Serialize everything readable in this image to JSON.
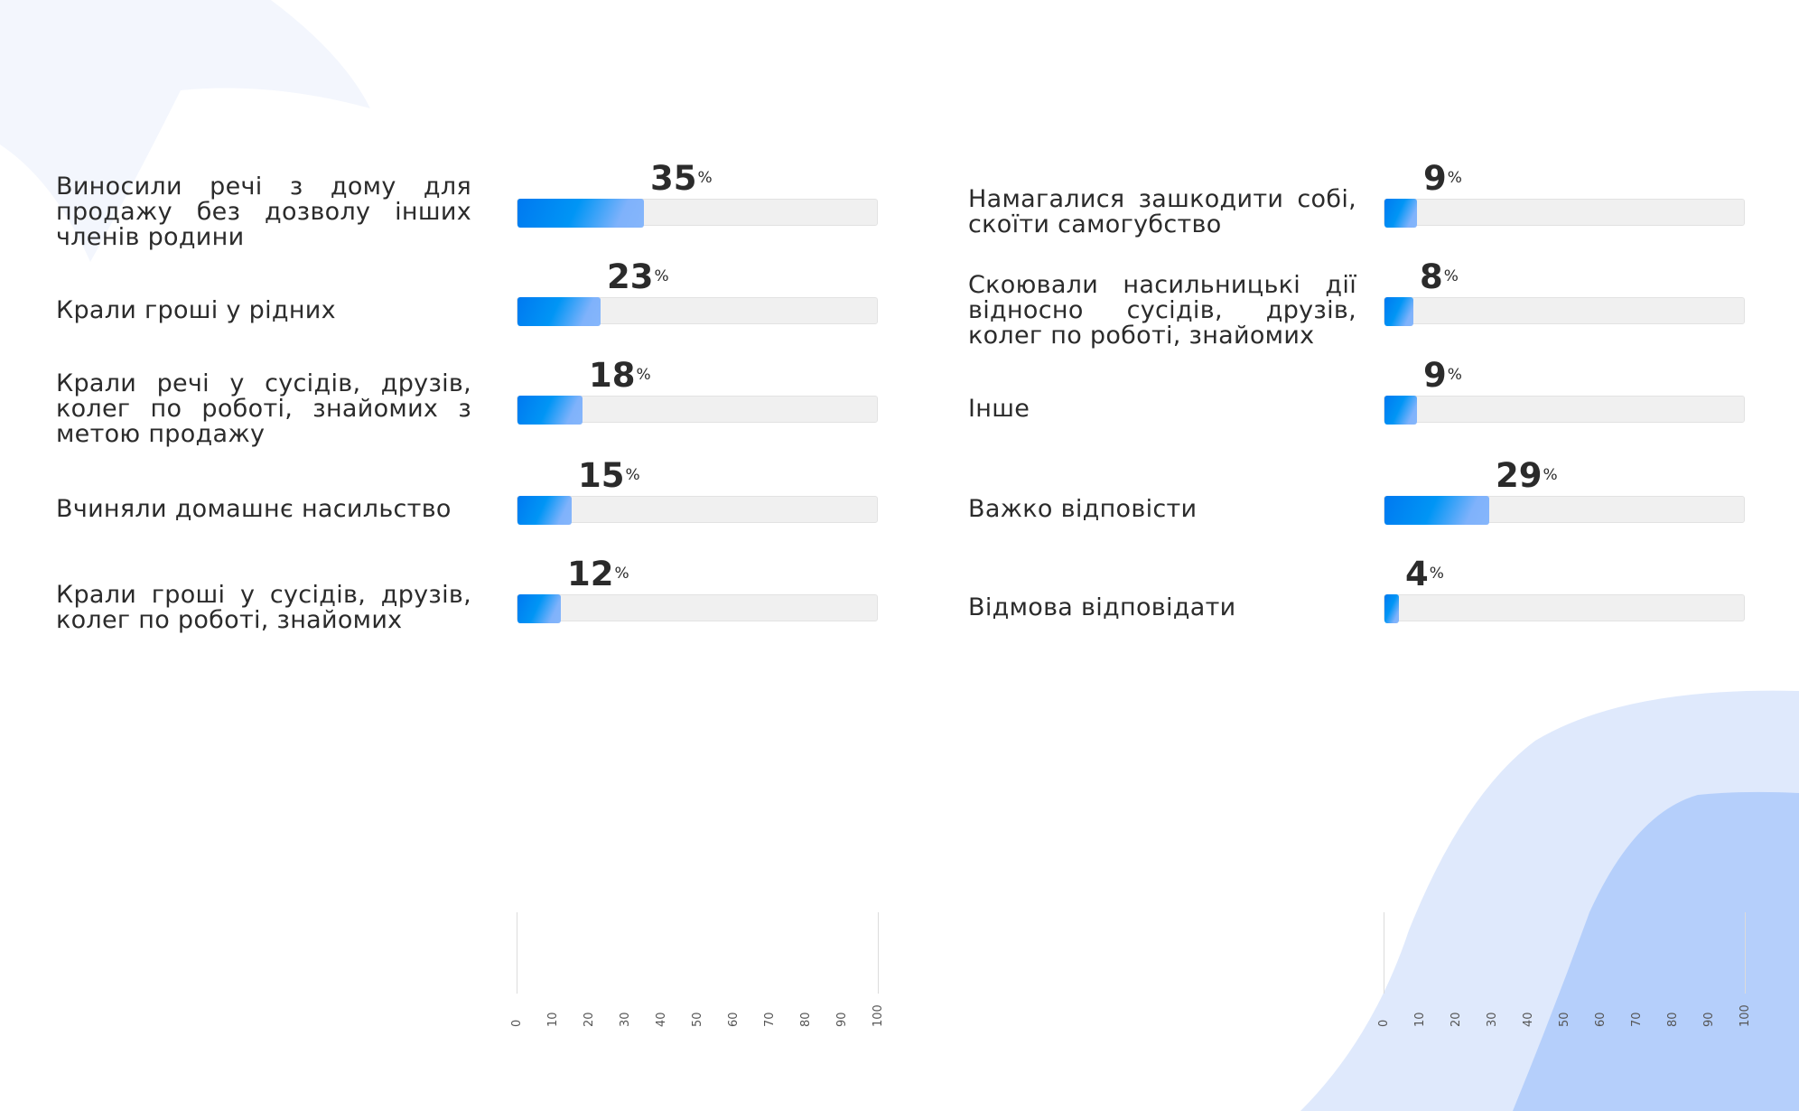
{
  "chart_data": [
    {
      "type": "bar",
      "orientation": "horizontal",
      "categories": [
        "Виносили речі з дому для продажу без дозволу інших членів родини",
        "Крали гроші у рідних",
        "Крали речі у сусідів, друзів, колег по роботі, знайомих з метою продажу",
        "Вчиняли домашнє насильство",
        "Крали гроші у сусідів, друзів, колег по роботі, знайомих"
      ],
      "values": [
        35,
        23,
        18,
        15,
        12
      ],
      "unit": "%",
      "xlim": [
        0,
        100
      ],
      "ticks": [
        "0",
        "10",
        "20",
        "30",
        "40",
        "50",
        "60",
        "70",
        "80",
        "90",
        "100"
      ]
    },
    {
      "type": "bar",
      "orientation": "horizontal",
      "categories": [
        "Намагалися зашкодити собі, скоїти самогубство",
        "Скоювали насильницькі дії відносно сусідів, друзів, колег по роботі, знайомих",
        "Інше",
        "Важко відповісти",
        "Відмова відповідати"
      ],
      "values": [
        9,
        8,
        9,
        29,
        4
      ],
      "unit": "%",
      "xlim": [
        0,
        100
      ],
      "ticks": [
        "0",
        "10",
        "20",
        "30",
        "40",
        "50",
        "60",
        "70",
        "80",
        "90",
        "100"
      ]
    }
  ],
  "colors": {
    "bar_start": "#0079f0",
    "bar_end": "#86b6fb",
    "track": "#f0f0f0",
    "blob_light": "#dfe9fc",
    "blob_dark": "#b5cffb"
  }
}
